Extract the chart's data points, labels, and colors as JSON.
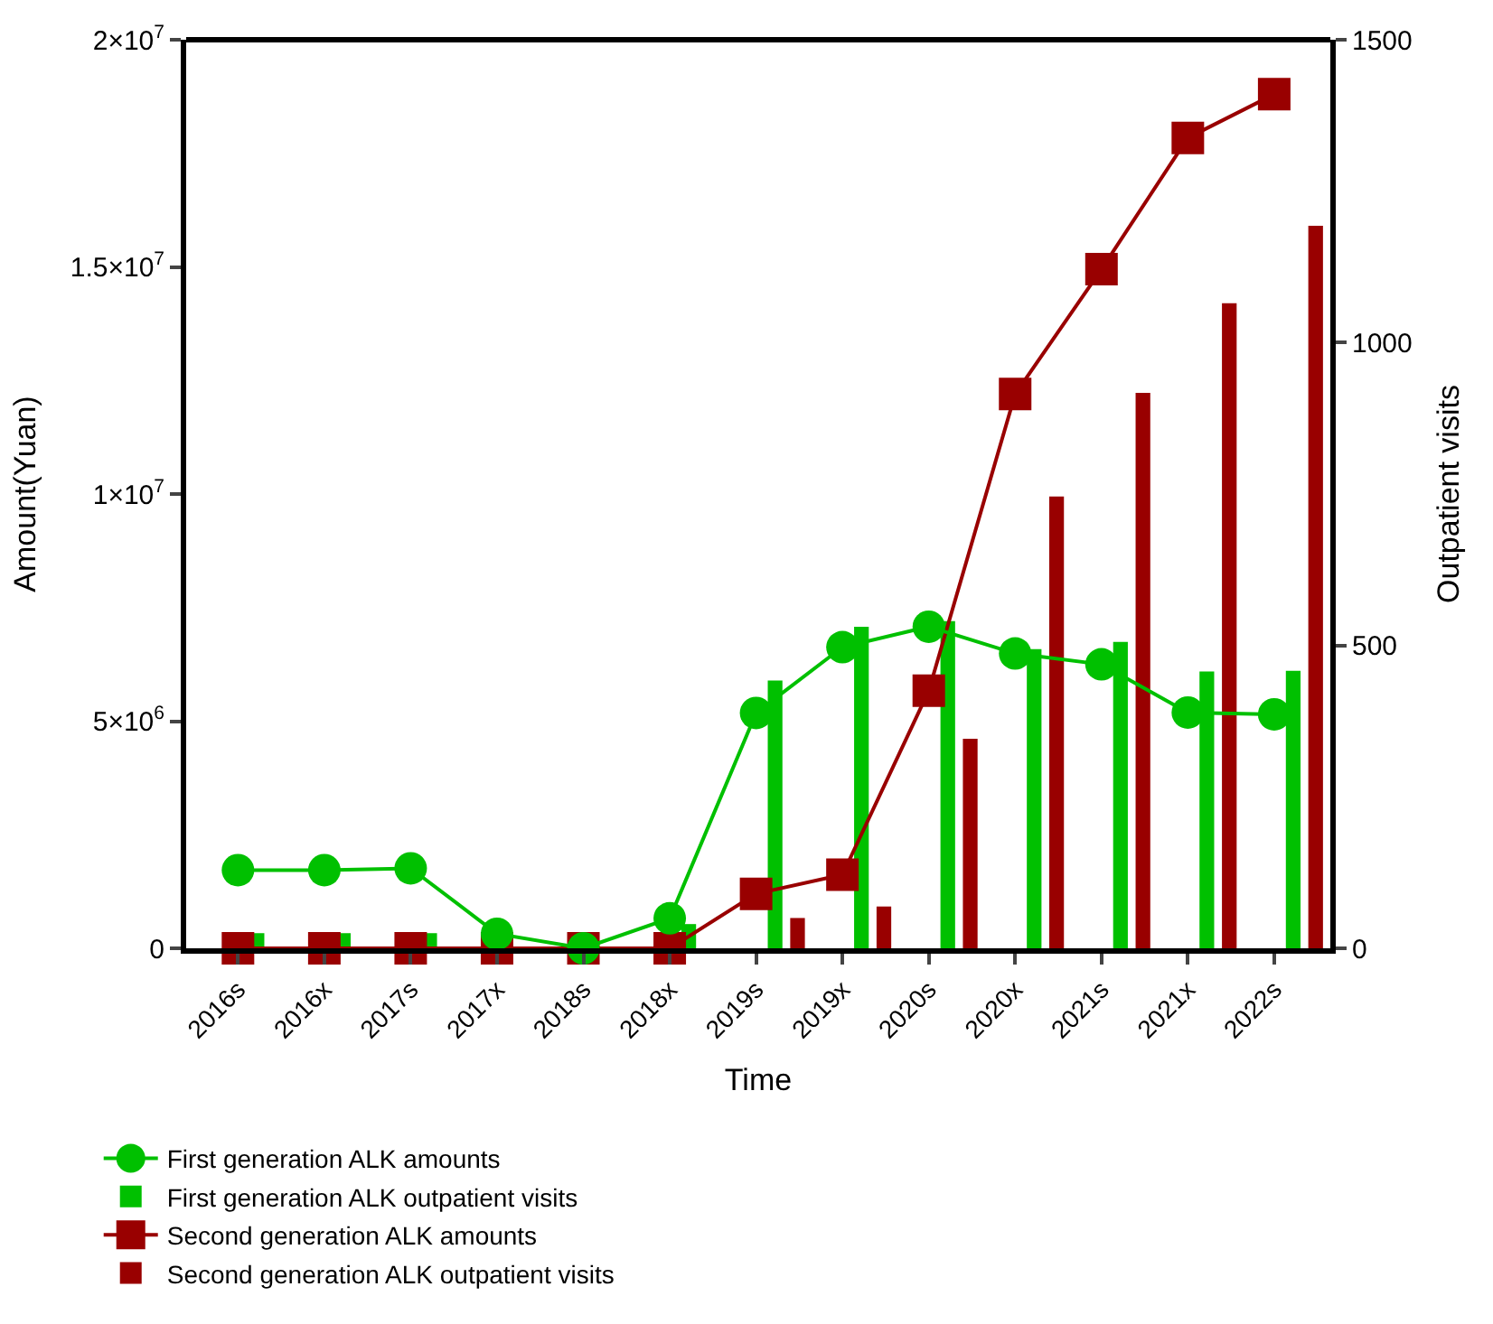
{
  "chart_data": {
    "type": "line",
    "xlabel": "Time",
    "ylabel": "Amount(Yuan)",
    "y2label": "Outpatient visits",
    "categories": [
      "2016s",
      "2016x",
      "2017s",
      "2017x",
      "2018s",
      "2018x",
      "2019s",
      "2019x",
      "2020s",
      "2020x",
      "2021s",
      "2021x",
      "2022s"
    ],
    "series": [
      {
        "name": "First generation ALK amounts",
        "marker": "circle",
        "color": "#00c000",
        "values": [
          1720000,
          1720000,
          1760000,
          320000,
          0,
          660000,
          5180000,
          6630000,
          7080000,
          6490000,
          6250000,
          5190000,
          5150000
        ]
      },
      {
        "name": "First generation ALK outpatient visits",
        "type": "bar",
        "axis": "y2",
        "color": "#00c000",
        "values": [
          25,
          25,
          25,
          null,
          0,
          40,
          442,
          531,
          540,
          494,
          506,
          457,
          458
        ]
      },
      {
        "name": "Second generation ALK amounts",
        "marker": "square",
        "color": "#990000",
        "values": [
          0,
          0,
          0,
          0,
          0,
          0,
          1200000,
          1620000,
          5670000,
          12200000,
          14950000,
          17840000,
          18800000
        ]
      },
      {
        "name": "Second generation ALK outpatient visits",
        "type": "bar",
        "axis": "y2",
        "color": "#990000",
        "values": [
          0,
          0,
          0,
          0,
          0,
          0,
          50,
          69,
          346,
          746,
          917,
          1065,
          1193
        ]
      }
    ],
    "ylim": [
      0,
      20000000
    ],
    "yticks": [
      0,
      {
        "value": 5000000,
        "label": "5×10$^{6}$"
      },
      {
        "value": 10000000,
        "label": "1×10$^{7}$"
      },
      {
        "value": 15000000,
        "label": "1.5×10$^{7}$"
      },
      {
        "value": 20000000,
        "label": "2×10$^{7}$"
      }
    ],
    "y2lim": [
      0,
      1500
    ],
    "y2ticks": [
      0,
      500,
      1000,
      1500
    ],
    "legend": "bottom"
  }
}
